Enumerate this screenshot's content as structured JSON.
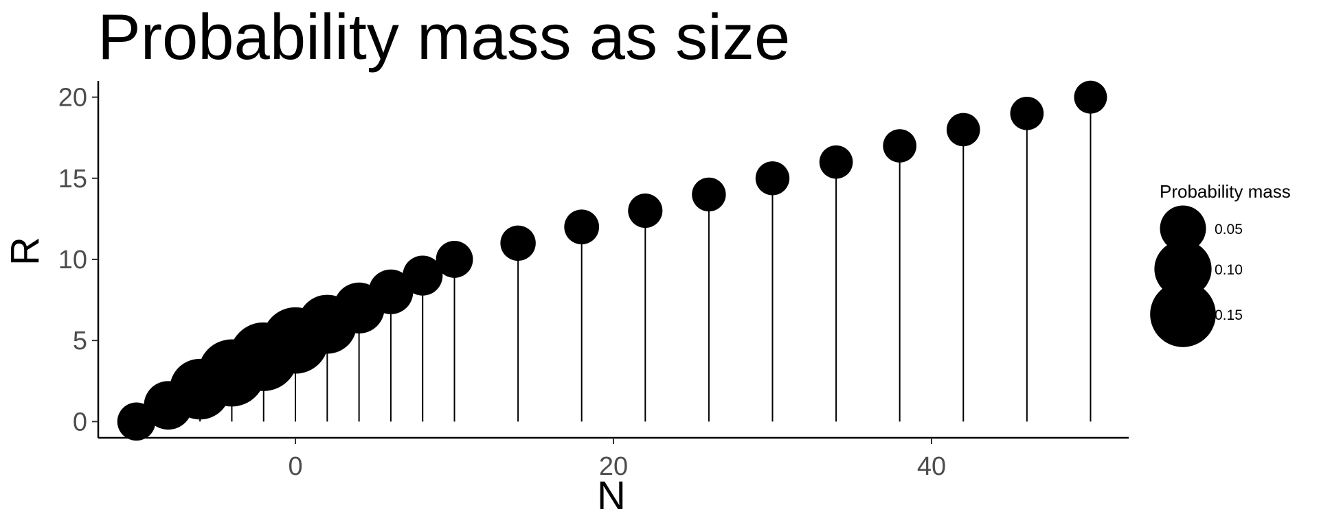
{
  "chart_data": {
    "type": "scatter",
    "title": "Probability mass as size",
    "xlabel": "N",
    "ylabel": "R",
    "xlim": [
      -12.4,
      52.4
    ],
    "ylim": [
      -1,
      21
    ],
    "x_ticks": [
      0,
      20,
      40
    ],
    "y_ticks": [
      0,
      5,
      10,
      15,
      20
    ],
    "grid": false,
    "legend": {
      "title": "Probability mass",
      "position": "right",
      "items": [
        {
          "label": "0.05",
          "value": 0.05
        },
        {
          "label": "0.10",
          "value": 0.1
        },
        {
          "label": "0.15",
          "value": 0.15
        }
      ]
    },
    "points": [
      {
        "x": -10,
        "y": 0,
        "p": 0.025
      },
      {
        "x": -8,
        "y": 1,
        "p": 0.06
      },
      {
        "x": -6,
        "y": 2,
        "p": 0.12
      },
      {
        "x": -4,
        "y": 3,
        "p": 0.16
      },
      {
        "x": -2,
        "y": 4,
        "p": 0.17
      },
      {
        "x": 0,
        "y": 5,
        "p": 0.155
      },
      {
        "x": 2,
        "y": 6,
        "p": 0.11
      },
      {
        "x": 4,
        "y": 7,
        "p": 0.07
      },
      {
        "x": 6,
        "y": 8,
        "p": 0.045
      },
      {
        "x": 8,
        "y": 9,
        "p": 0.03
      },
      {
        "x": 10,
        "y": 10,
        "p": 0.022
      },
      {
        "x": 14,
        "y": 11,
        "p": 0.018
      },
      {
        "x": 18,
        "y": 12,
        "p": 0.017
      },
      {
        "x": 22,
        "y": 13,
        "p": 0.016
      },
      {
        "x": 26,
        "y": 14,
        "p": 0.015
      },
      {
        "x": 30,
        "y": 15,
        "p": 0.015
      },
      {
        "x": 34,
        "y": 16,
        "p": 0.014
      },
      {
        "x": 38,
        "y": 17,
        "p": 0.014
      },
      {
        "x": 42,
        "y": 18,
        "p": 0.014
      },
      {
        "x": 46,
        "y": 19,
        "p": 0.014
      },
      {
        "x": 50,
        "y": 20,
        "p": 0.013
      }
    ],
    "colors": {
      "point": "#000000",
      "stem": "#000000",
      "axis": "#000000",
      "tick_label": "#4d4d4d"
    }
  }
}
